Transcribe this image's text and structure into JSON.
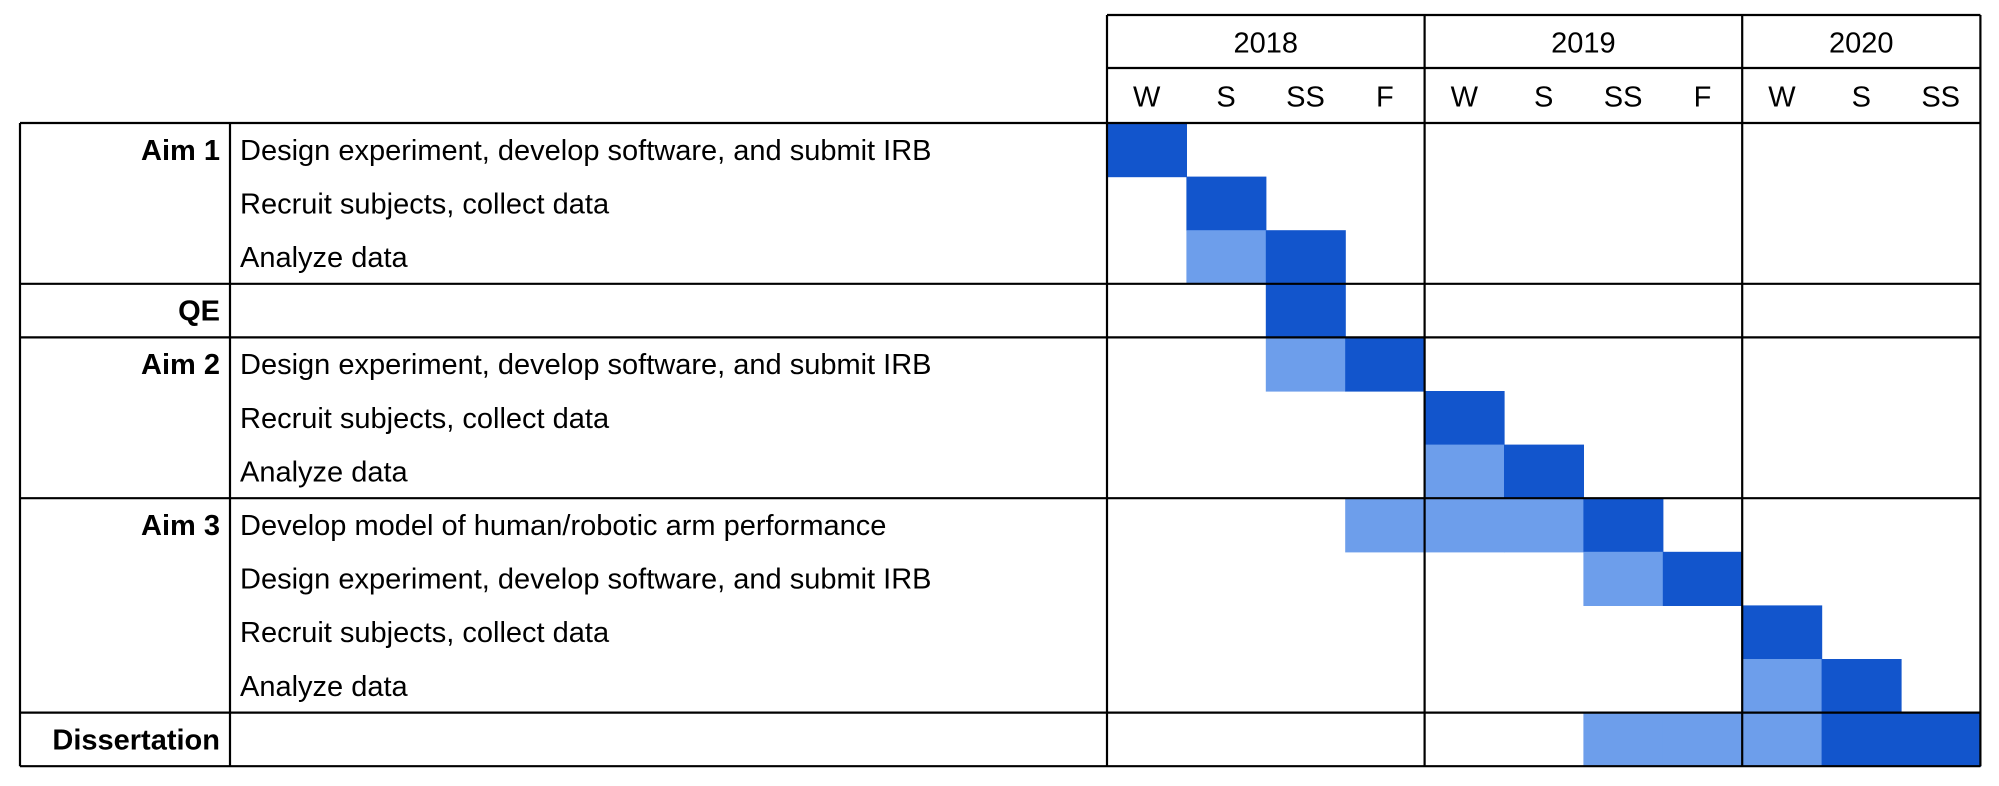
{
  "colors": {
    "primary": "#1255cc",
    "secondary": "#6d9eeb",
    "grid": "#000000",
    "background": "#ffffff"
  },
  "years": [
    {
      "label": "2018",
      "seasons": [
        "W",
        "S",
        "SS",
        "F"
      ]
    },
    {
      "label": "2019",
      "seasons": [
        "W",
        "S",
        "SS",
        "F"
      ]
    },
    {
      "label": "2020",
      "seasons": [
        "W",
        "S",
        "SS"
      ]
    }
  ],
  "groups": [
    {
      "name": "Aim 1",
      "tasks": [
        {
          "label": "Design experiment, develop software, and submit IRB",
          "cells": [
            {
              "col": 0,
              "shade": "primary"
            }
          ]
        },
        {
          "label": "Recruit subjects, collect data",
          "cells": [
            {
              "col": 1,
              "shade": "primary"
            }
          ]
        },
        {
          "label": "Analyze data",
          "cells": [
            {
              "col": 1,
              "shade": "secondary"
            },
            {
              "col": 2,
              "shade": "primary"
            }
          ]
        }
      ]
    },
    {
      "name": "QE",
      "tasks": [
        {
          "label": "",
          "cells": [
            {
              "col": 2,
              "shade": "primary"
            }
          ]
        }
      ]
    },
    {
      "name": "Aim 2",
      "tasks": [
        {
          "label": "Design experiment, develop software, and submit IRB",
          "cells": [
            {
              "col": 2,
              "shade": "secondary"
            },
            {
              "col": 3,
              "shade": "primary"
            }
          ]
        },
        {
          "label": "Recruit subjects, collect data",
          "cells": [
            {
              "col": 4,
              "shade": "primary"
            }
          ]
        },
        {
          "label": "Analyze data",
          "cells": [
            {
              "col": 4,
              "shade": "secondary"
            },
            {
              "col": 5,
              "shade": "primary"
            }
          ]
        }
      ]
    },
    {
      "name": "Aim 3",
      "tasks": [
        {
          "label": "Develop model of human/robotic arm performance",
          "cells": [
            {
              "col": 3,
              "shade": "secondary"
            },
            {
              "col": 4,
              "shade": "secondary"
            },
            {
              "col": 5,
              "shade": "secondary"
            },
            {
              "col": 6,
              "shade": "primary"
            }
          ]
        },
        {
          "label": "Design experiment, develop software, and submit IRB",
          "cells": [
            {
              "col": 6,
              "shade": "secondary"
            },
            {
              "col": 7,
              "shade": "primary"
            }
          ]
        },
        {
          "label": "Recruit subjects, collect data",
          "cells": [
            {
              "col": 8,
              "shade": "primary"
            }
          ]
        },
        {
          "label": "Analyze data",
          "cells": [
            {
              "col": 8,
              "shade": "secondary"
            },
            {
              "col": 9,
              "shade": "primary"
            }
          ]
        }
      ]
    },
    {
      "name": "Dissertation",
      "tasks": [
        {
          "label": "",
          "cells": [
            {
              "col": 6,
              "shade": "secondary"
            },
            {
              "col": 7,
              "shade": "secondary"
            },
            {
              "col": 8,
              "shade": "secondary"
            },
            {
              "col": 9,
              "shade": "primary"
            },
            {
              "col": 10,
              "shade": "primary"
            }
          ]
        }
      ]
    }
  ]
}
